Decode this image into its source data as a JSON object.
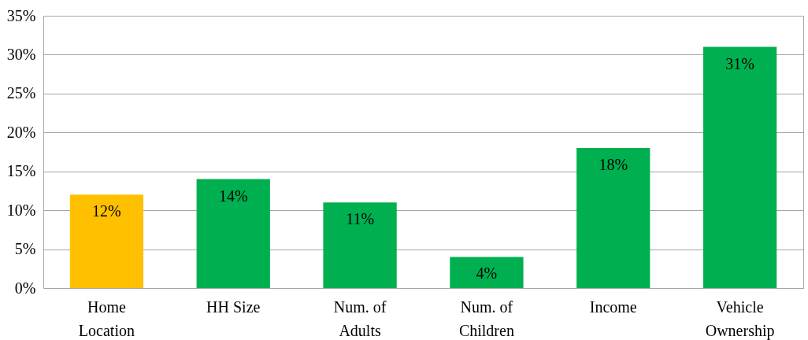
{
  "chart_data": {
    "type": "bar",
    "categories": [
      "Home Location",
      "HH Size",
      "Num. of Adults",
      "Num. of Children",
      "Income",
      "Vehicle Ownership"
    ],
    "values": [
      12,
      14,
      11,
      4,
      18,
      31
    ],
    "colors": [
      "#ffc000",
      "#00b050",
      "#00b050",
      "#00b050",
      "#00b050",
      "#00b050"
    ],
    "value_labels": [
      "12%",
      "14%",
      "11%",
      "4%",
      "18%",
      "31%"
    ],
    "ylim": [
      0,
      35
    ],
    "yticks": [
      {
        "value": 0,
        "label": "0%"
      },
      {
        "value": 5,
        "label": "5%"
      },
      {
        "value": 10,
        "label": "10%"
      },
      {
        "value": 15,
        "label": "15%"
      },
      {
        "value": 20,
        "label": "20%"
      },
      {
        "value": 25,
        "label": "25%"
      },
      {
        "value": 30,
        "label": "30%"
      },
      {
        "value": 35,
        "label": "35%"
      }
    ],
    "grid": "y"
  }
}
